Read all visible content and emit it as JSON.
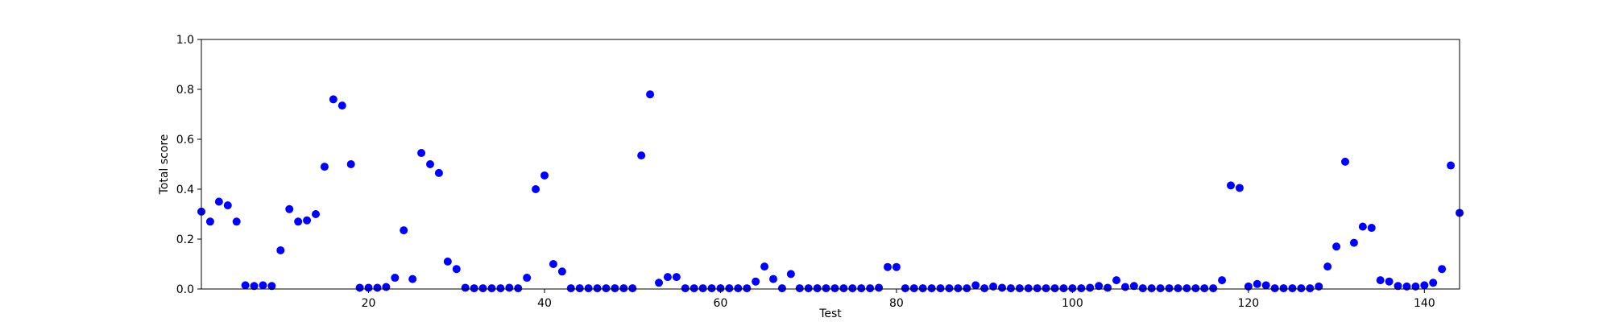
{
  "chart_data": {
    "type": "scatter",
    "title": "",
    "xlabel": "Test",
    "ylabel": "Total score",
    "xlim": [
      1,
      144
    ],
    "ylim": [
      0.0,
      1.0
    ],
    "xticks": [
      20,
      40,
      60,
      80,
      100,
      120,
      140
    ],
    "xtick_labels": [
      "20",
      "40",
      "60",
      "80",
      "100",
      "120",
      "140"
    ],
    "yticks": [
      0.0,
      0.2,
      0.4,
      0.6,
      0.8,
      1.0
    ],
    "ytick_labels": [
      "0.0",
      "0.2",
      "0.4",
      "0.6",
      "0.8",
      "1.0"
    ],
    "grid": false,
    "marker_color": "#0000ff",
    "x": [
      1,
      2,
      3,
      4,
      5,
      6,
      7,
      8,
      9,
      10,
      11,
      12,
      13,
      14,
      15,
      16,
      17,
      18,
      19,
      20,
      21,
      22,
      23,
      24,
      25,
      26,
      27,
      28,
      29,
      30,
      31,
      32,
      33,
      34,
      35,
      36,
      37,
      38,
      39,
      40,
      41,
      42,
      43,
      44,
      45,
      46,
      47,
      48,
      49,
      50,
      51,
      52,
      53,
      54,
      55,
      56,
      57,
      58,
      59,
      60,
      61,
      62,
      63,
      64,
      65,
      66,
      67,
      68,
      69,
      70,
      71,
      72,
      73,
      74,
      75,
      76,
      77,
      78,
      79,
      80,
      81,
      82,
      83,
      84,
      85,
      86,
      87,
      88,
      89,
      90,
      91,
      92,
      93,
      94,
      95,
      96,
      97,
      98,
      99,
      100,
      101,
      102,
      103,
      104,
      105,
      106,
      107,
      108,
      109,
      110,
      111,
      112,
      113,
      114,
      115,
      116,
      117,
      118,
      119,
      120,
      121,
      122,
      123,
      124,
      125,
      126,
      127,
      128,
      129,
      130,
      131,
      132,
      133,
      134,
      135,
      136,
      137,
      138,
      139,
      140,
      141,
      142,
      143,
      144
    ],
    "y": [
      0.31,
      0.27,
      0.35,
      0.335,
      0.27,
      0.015,
      0.012,
      0.015,
      0.012,
      0.155,
      0.32,
      0.27,
      0.275,
      0.3,
      0.49,
      0.76,
      0.735,
      0.5,
      0.005,
      0.005,
      0.005,
      0.008,
      0.045,
      0.235,
      0.04,
      0.545,
      0.5,
      0.465,
      0.11,
      0.08,
      0.005,
      0.003,
      0.003,
      0.003,
      0.003,
      0.005,
      0.003,
      0.045,
      0.4,
      0.455,
      0.1,
      0.07,
      0.003,
      0.003,
      0.003,
      0.003,
      0.003,
      0.003,
      0.003,
      0.003,
      0.535,
      0.78,
      0.025,
      0.048,
      0.048,
      0.003,
      0.003,
      0.003,
      0.003,
      0.003,
      0.003,
      0.003,
      0.003,
      0.03,
      0.09,
      0.04,
      0.003,
      0.06,
      0.003,
      0.003,
      0.003,
      0.003,
      0.003,
      0.003,
      0.003,
      0.003,
      0.003,
      0.005,
      0.088,
      0.088,
      0.003,
      0.003,
      0.003,
      0.003,
      0.003,
      0.003,
      0.003,
      0.003,
      0.015,
      0.003,
      0.01,
      0.005,
      0.003,
      0.003,
      0.003,
      0.003,
      0.003,
      0.003,
      0.003,
      0.003,
      0.003,
      0.005,
      0.012,
      0.005,
      0.035,
      0.008,
      0.012,
      0.003,
      0.003,
      0.003,
      0.003,
      0.003,
      0.003,
      0.003,
      0.003,
      0.003,
      0.035,
      0.415,
      0.405,
      0.01,
      0.02,
      0.015,
      0.003,
      0.003,
      0.003,
      0.003,
      0.003,
      0.01,
      0.09,
      0.17,
      0.51,
      0.185,
      0.25,
      0.245,
      0.035,
      0.03,
      0.012,
      0.01,
      0.01,
      0.015,
      0.025,
      0.08,
      0.495,
      0.305
    ]
  }
}
